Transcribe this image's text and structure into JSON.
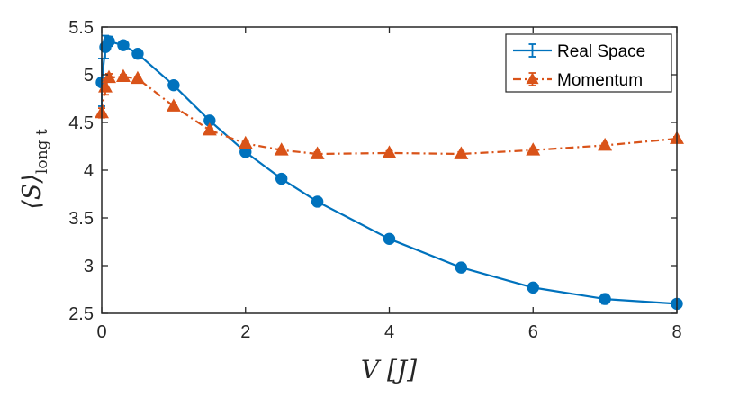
{
  "chart_data": {
    "type": "line",
    "xlabel": "V [J]",
    "ylabel": "⟨S⟩",
    "ylabel_subscript": "long t",
    "xlim": [
      0,
      8
    ],
    "ylim": [
      2.5,
      5.5
    ],
    "x_ticks": [
      0,
      2,
      4,
      6,
      8
    ],
    "y_ticks": [
      2.5,
      3,
      3.5,
      4,
      4.5,
      5,
      5.5
    ],
    "x_tick_labels": [
      "0",
      "2",
      "4",
      "6",
      "8"
    ],
    "y_tick_labels": [
      "2.5",
      "3",
      "3.5",
      "4",
      "4.5",
      "5",
      "5.5"
    ],
    "grid": false,
    "legend_position": "top-right",
    "series": [
      {
        "name": "Real Space",
        "color": "#0072BD",
        "line_style": "solid",
        "marker": "circle",
        "x": [
          0,
          0.05,
          0.1,
          0.3,
          0.5,
          1,
          1.5,
          2,
          2.5,
          3,
          4,
          5,
          6,
          7,
          8
        ],
        "y": [
          4.92,
          5.29,
          5.35,
          5.31,
          5.22,
          4.89,
          4.52,
          4.19,
          3.91,
          3.67,
          3.28,
          2.98,
          2.77,
          2.65,
          2.6
        ],
        "err": [
          0.25,
          0.12,
          0.05,
          0.03,
          0.03,
          0.03,
          0.03,
          0.03,
          0.03,
          0.03,
          0.03,
          0.03,
          0.03,
          0.05,
          0.03
        ]
      },
      {
        "name": "Momentum",
        "color": "#D95319",
        "line_style": "dash-dot",
        "marker": "triangle",
        "x": [
          0,
          0.05,
          0.1,
          0.3,
          0.5,
          1,
          1.5,
          2,
          2.5,
          3,
          4,
          5,
          6,
          7,
          8
        ],
        "y": [
          4.6,
          4.87,
          4.97,
          4.98,
          4.96,
          4.67,
          4.42,
          4.28,
          4.21,
          4.17,
          4.18,
          4.17,
          4.21,
          4.26,
          4.33
        ],
        "err": [
          0.05,
          0.08,
          0.04,
          0.02,
          0.02,
          0.02,
          0.02,
          0.02,
          0.02,
          0.02,
          0.02,
          0.02,
          0.02,
          0.02,
          0.02
        ]
      }
    ]
  }
}
